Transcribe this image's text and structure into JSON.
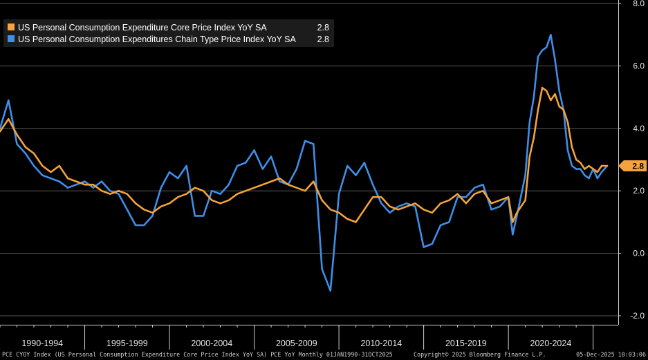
{
  "chart_data": {
    "type": "line",
    "title": "",
    "xlabel": "",
    "ylabel": "",
    "ylim": [
      -2.2,
      8.0
    ],
    "y_ticks": [
      8.0,
      6.0,
      4.0,
      2.0,
      0.0,
      -2.0
    ],
    "y_tick_labels": [
      "8.0",
      "6.0",
      "4.0",
      "2.0",
      "0.0",
      "-2.0"
    ],
    "x_range": [
      1990.0,
      2025.83
    ],
    "x_category_labels": [
      "1990-1994",
      "1995-1999",
      "2000-2004",
      "2005-2009",
      "2010-2014",
      "2015-2019",
      "2020-2024"
    ],
    "legend_position": "top-left",
    "series": [
      {
        "name": "US Personal Consumption Expenditure Core Price Index YoY SA",
        "last_value_label": "2.8",
        "color": "#f5a33a",
        "x": [
          1990.0,
          1990.5,
          1991.0,
          1991.5,
          1992.0,
          1992.5,
          1993.0,
          1993.5,
          1994.0,
          1994.5,
          1995.0,
          1995.5,
          1996.0,
          1996.5,
          1997.0,
          1997.5,
          1998.0,
          1998.5,
          1999.0,
          1999.5,
          2000.0,
          2000.5,
          2001.0,
          2001.5,
          2002.0,
          2002.5,
          2003.0,
          2003.5,
          2004.0,
          2004.5,
          2005.0,
          2005.5,
          2006.0,
          2006.5,
          2007.0,
          2007.5,
          2008.0,
          2008.5,
          2009.0,
          2009.5,
          2010.0,
          2010.5,
          2011.0,
          2011.5,
          2012.0,
          2012.5,
          2013.0,
          2013.5,
          2014.0,
          2014.5,
          2015.0,
          2015.5,
          2016.0,
          2016.5,
          2017.0,
          2017.5,
          2018.0,
          2018.5,
          2019.0,
          2019.5,
          2020.0,
          2020.25,
          2020.5,
          2021.0,
          2021.25,
          2021.5,
          2021.75,
          2022.0,
          2022.25,
          2022.5,
          2022.75,
          2023.0,
          2023.25,
          2023.5,
          2023.75,
          2024.0,
          2024.25,
          2024.5,
          2024.75,
          2025.0,
          2025.25,
          2025.5,
          2025.83
        ],
        "values": [
          3.9,
          4.3,
          3.8,
          3.4,
          3.2,
          2.8,
          2.6,
          2.8,
          2.4,
          2.3,
          2.2,
          2.2,
          2.0,
          1.9,
          2.0,
          1.9,
          1.6,
          1.4,
          1.3,
          1.5,
          1.6,
          1.8,
          1.9,
          2.1,
          2.0,
          1.7,
          1.6,
          1.7,
          1.9,
          2.0,
          2.1,
          2.2,
          2.3,
          2.4,
          2.2,
          2.1,
          2.0,
          2.3,
          1.7,
          1.4,
          1.3,
          1.1,
          1.0,
          1.4,
          1.8,
          1.8,
          1.5,
          1.4,
          1.5,
          1.6,
          1.4,
          1.3,
          1.6,
          1.7,
          1.9,
          1.6,
          1.9,
          2.0,
          1.6,
          1.7,
          1.8,
          1.0,
          1.3,
          1.7,
          3.1,
          3.7,
          4.6,
          5.3,
          5.2,
          4.9,
          5.1,
          4.7,
          4.6,
          4.2,
          3.4,
          3.0,
          2.9,
          2.7,
          2.8,
          2.7,
          2.6,
          2.8,
          2.8
        ]
      },
      {
        "name": "US Personal Consumption Expenditures Chain Type Price Index YoY SA",
        "last_value_label": "2.8",
        "color": "#3f8fe8",
        "x": [
          1990.0,
          1990.5,
          1991.0,
          1991.5,
          1992.0,
          1992.5,
          1993.0,
          1993.5,
          1994.0,
          1994.5,
          1995.0,
          1995.5,
          1996.0,
          1996.5,
          1997.0,
          1997.5,
          1998.0,
          1998.5,
          1999.0,
          1999.5,
          2000.0,
          2000.5,
          2001.0,
          2001.5,
          2002.0,
          2002.5,
          2003.0,
          2003.5,
          2004.0,
          2004.5,
          2005.0,
          2005.5,
          2006.0,
          2006.5,
          2007.0,
          2007.5,
          2008.0,
          2008.5,
          2009.0,
          2009.5,
          2010.0,
          2010.5,
          2011.0,
          2011.5,
          2012.0,
          2012.5,
          2013.0,
          2013.5,
          2014.0,
          2014.5,
          2015.0,
          2015.5,
          2016.0,
          2016.5,
          2017.0,
          2017.5,
          2018.0,
          2018.5,
          2019.0,
          2019.5,
          2020.0,
          2020.25,
          2020.5,
          2021.0,
          2021.25,
          2021.5,
          2021.75,
          2022.0,
          2022.25,
          2022.5,
          2022.75,
          2023.0,
          2023.25,
          2023.5,
          2023.75,
          2024.0,
          2024.25,
          2024.5,
          2024.75,
          2025.0,
          2025.25,
          2025.5,
          2025.83
        ],
        "values": [
          4.0,
          4.9,
          3.5,
          3.2,
          2.8,
          2.5,
          2.4,
          2.3,
          2.1,
          2.2,
          2.3,
          2.1,
          2.3,
          2.0,
          1.9,
          1.4,
          0.9,
          0.9,
          1.2,
          2.1,
          2.6,
          2.4,
          2.8,
          1.2,
          1.2,
          2.0,
          1.9,
          2.2,
          2.8,
          2.9,
          3.3,
          2.7,
          3.1,
          2.3,
          2.2,
          2.7,
          3.6,
          3.5,
          -0.5,
          -1.2,
          1.9,
          2.8,
          2.5,
          2.9,
          2.2,
          1.6,
          1.3,
          1.5,
          1.6,
          1.5,
          0.2,
          0.3,
          0.9,
          1.0,
          1.8,
          1.8,
          2.1,
          2.2,
          1.4,
          1.5,
          1.8,
          0.6,
          1.2,
          2.5,
          4.2,
          5.0,
          6.3,
          6.5,
          6.6,
          7.0,
          6.2,
          5.2,
          4.6,
          3.3,
          2.8,
          2.7,
          2.7,
          2.5,
          2.4,
          2.7,
          2.4,
          2.6,
          2.8
        ]
      }
    ]
  },
  "footer": {
    "left": "PCE CYOY Index (US Personal Consumption Expenditure Core Price Index YoY SA) PCE YoY Monthly 01JAN1990-31OCT2025",
    "center": "Copyright© 2025 Bloomberg Finance L.P.",
    "right": "05-Dec-2025 10:03:06"
  },
  "colors": {
    "background": "#000000",
    "grid": "#5a5a5a",
    "core_series": "#f5a33a",
    "headline_series": "#3f8fe8",
    "legend_bg": "#1c1c1c"
  }
}
